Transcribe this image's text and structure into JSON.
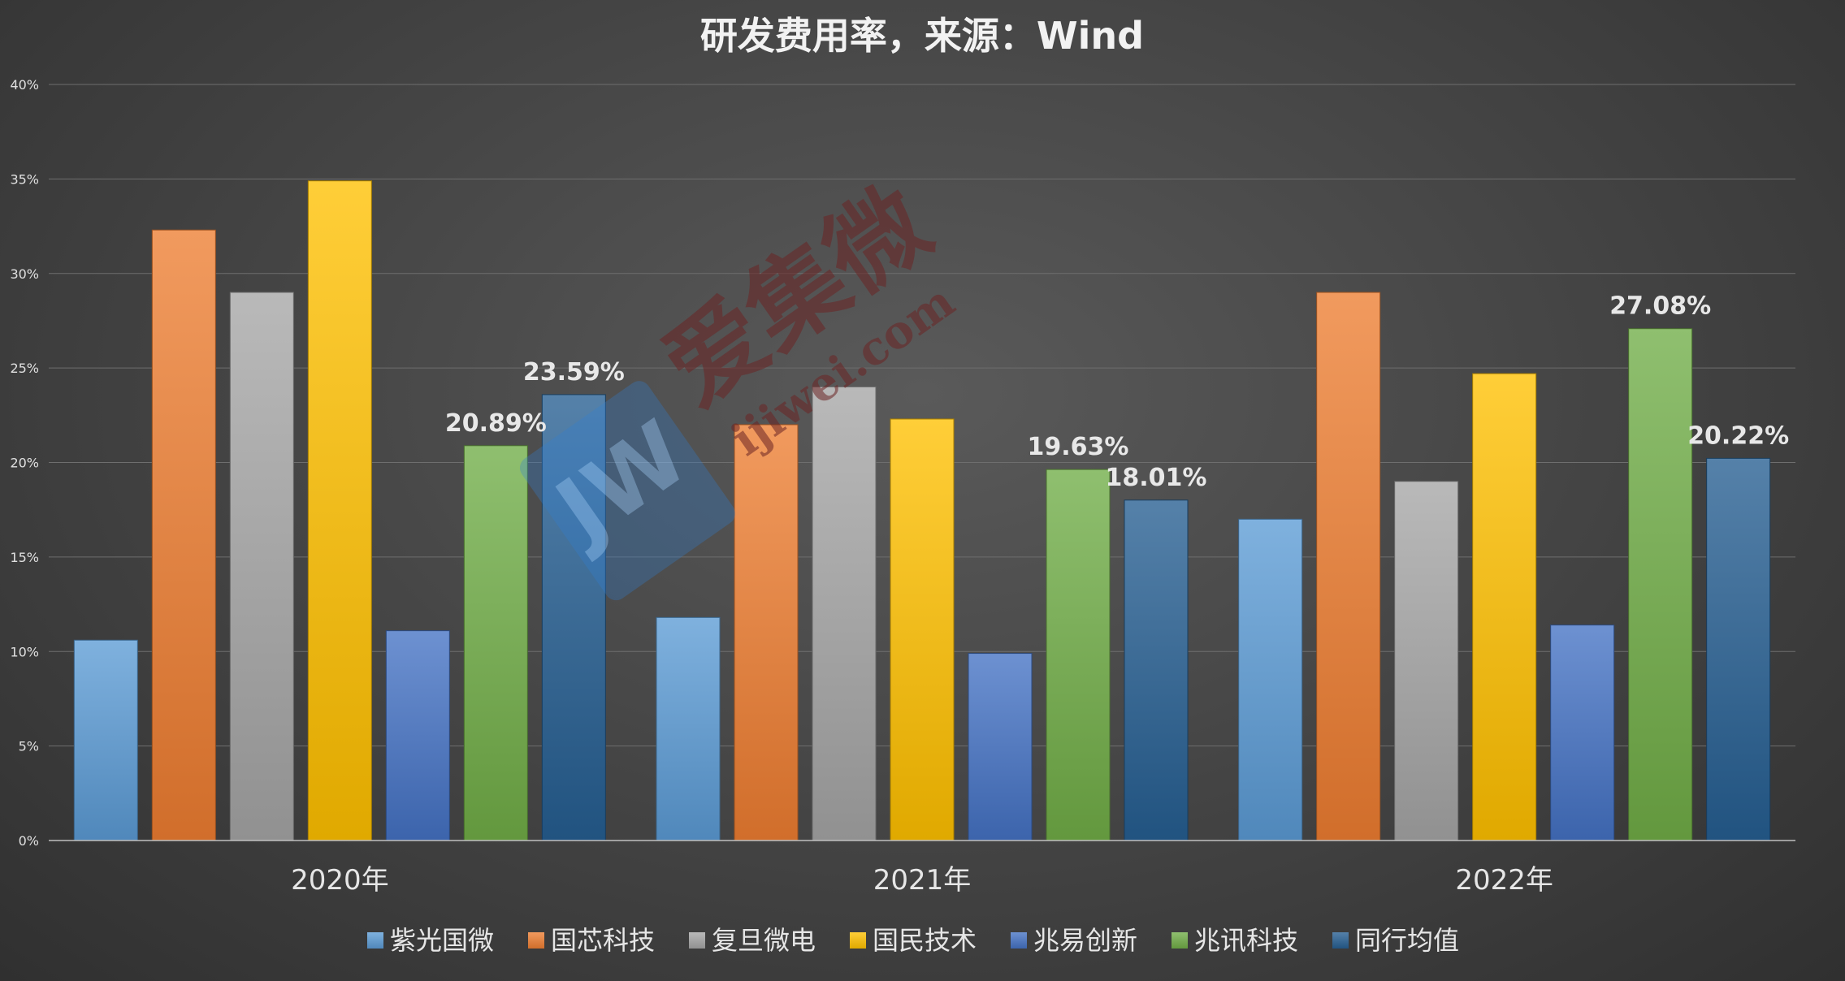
{
  "chart_data": {
    "type": "bar",
    "title": "研发费用率，来源：Wind",
    "xlabel": "",
    "ylabel": "",
    "categories": [
      "2020年",
      "2021年",
      "2022年"
    ],
    "ylim": [
      0,
      40
    ],
    "y_ticks": [
      0,
      5,
      10,
      15,
      20,
      25,
      30,
      35,
      40
    ],
    "y_tick_suffix": "%",
    "grid": true,
    "legend_position": "bottom",
    "series": [
      {
        "name": "紫光国微",
        "color": "#5b9bd5",
        "values": [
          10.6,
          11.8,
          17.0
        ]
      },
      {
        "name": "国芯科技",
        "color": "#ed7d31",
        "values": [
          32.3,
          22.0,
          29.0
        ]
      },
      {
        "name": "复旦微电",
        "color": "#a5a5a5",
        "values": [
          29.0,
          24.0,
          19.0
        ]
      },
      {
        "name": "国民技术",
        "color": "#ffc000",
        "values": [
          34.9,
          22.3,
          24.7
        ]
      },
      {
        "name": "兆易创新",
        "color": "#4472c4",
        "values": [
          11.1,
          9.9,
          11.4
        ]
      },
      {
        "name": "兆讯科技",
        "color": "#70ad47",
        "values": [
          20.89,
          19.63,
          27.08
        ]
      },
      {
        "name": "同行均值",
        "color": "#255e91",
        "values": [
          23.59,
          18.01,
          20.22
        ]
      }
    ],
    "data_labels": [
      {
        "series": 5,
        "category": 0,
        "text": "20.89%"
      },
      {
        "series": 6,
        "category": 0,
        "text": "23.59%"
      },
      {
        "series": 5,
        "category": 1,
        "text": "19.63%"
      },
      {
        "series": 6,
        "category": 1,
        "text": "18.01%"
      },
      {
        "series": 5,
        "category": 2,
        "text": "27.08%"
      },
      {
        "series": 6,
        "category": 2,
        "text": "20.22%"
      }
    ]
  },
  "watermark": {
    "text": "爱集微",
    "url": "ijiwei.com",
    "logo": "JW"
  }
}
